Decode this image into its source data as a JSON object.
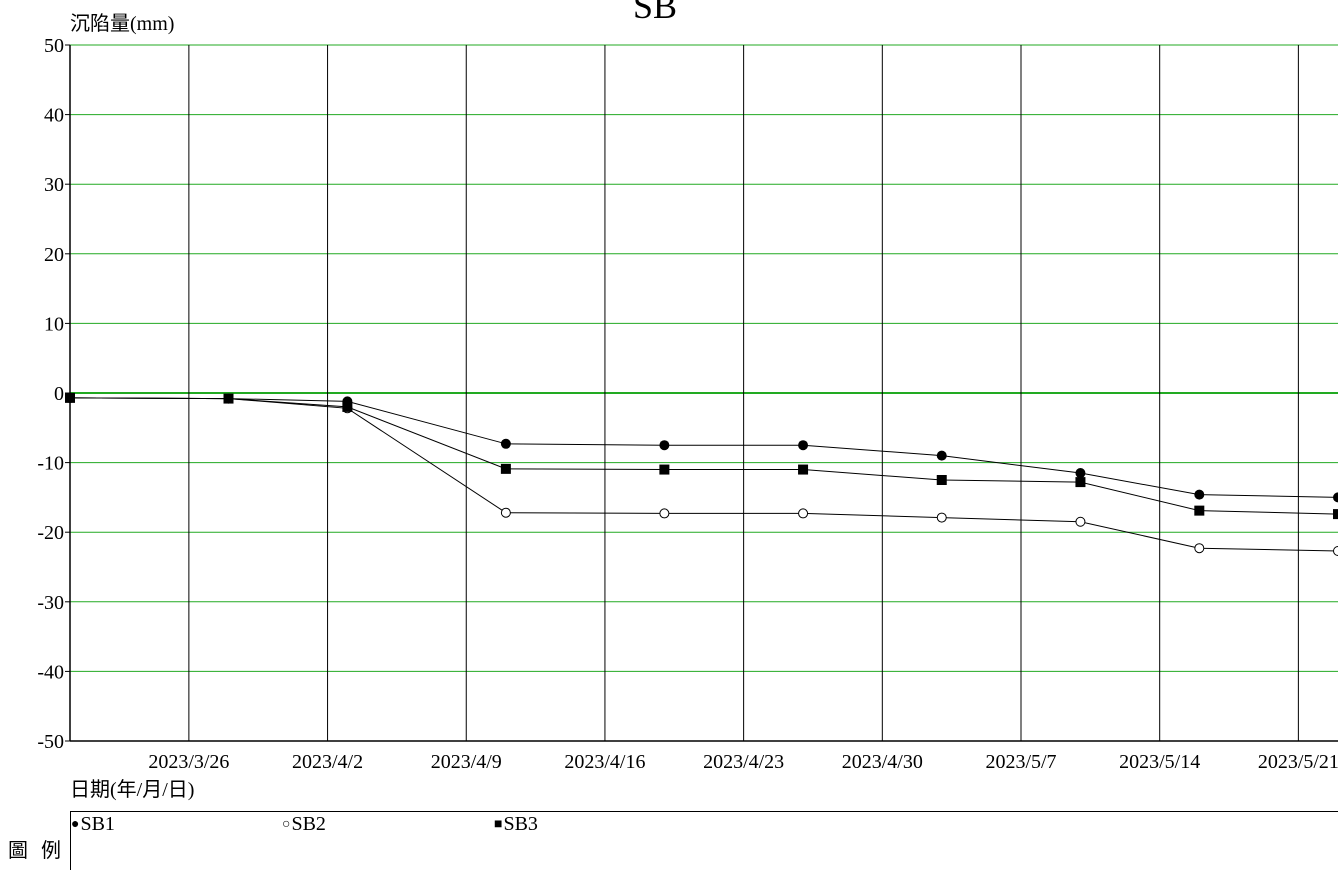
{
  "chart_data": {
    "type": "line",
    "title": "SB",
    "ylabel": "沉陷量(mm)",
    "xlabel": "日期(年/月/日)",
    "ylim": [
      -50,
      50
    ],
    "yticks": [
      50,
      40,
      30,
      20,
      10,
      0,
      -10,
      -20,
      -30,
      -40,
      -50
    ],
    "xlim": [
      "2023/3/20",
      "2023/5/23"
    ],
    "xticks": [
      "2023/3/26",
      "2023/4/2",
      "2023/4/9",
      "2023/4/16",
      "2023/4/23",
      "2023/4/30",
      "2023/5/7",
      "2023/5/14",
      "2023/5/21"
    ],
    "grid": true,
    "grid_colors": {
      "horizontal": "#22aa22",
      "vertical": "#000000"
    },
    "legend_placement": "bottom",
    "legend_title": "圖 例",
    "series": [
      {
        "name": "SB1",
        "marker": "filled-circle",
        "x": [
          "2023/3/20",
          "2023/3/28",
          "2023/4/3",
          "2023/4/11",
          "2023/4/19",
          "2023/4/26",
          "2023/5/3",
          "2023/5/10",
          "2023/5/16",
          "2023/5/23"
        ],
        "y": [
          -0.7,
          -0.8,
          -1.2,
          -7.3,
          -7.5,
          -7.5,
          -9.0,
          -11.5,
          -14.6,
          -15.0
        ]
      },
      {
        "name": "SB2",
        "marker": "open-circle",
        "x": [
          "2023/3/20",
          "2023/3/28",
          "2023/4/3",
          "2023/4/11",
          "2023/4/19",
          "2023/4/26",
          "2023/5/3",
          "2023/5/10",
          "2023/5/16",
          "2023/5/23"
        ],
        "y": [
          -0.7,
          -0.8,
          -2.2,
          -17.2,
          -17.3,
          -17.3,
          -17.9,
          -18.5,
          -22.3,
          -22.7
        ]
      },
      {
        "name": "SB3",
        "marker": "filled-square",
        "x": [
          "2023/3/20",
          "2023/3/28",
          "2023/4/3",
          "2023/4/11",
          "2023/4/19",
          "2023/4/26",
          "2023/5/3",
          "2023/5/10",
          "2023/5/16",
          "2023/5/23"
        ],
        "y": [
          -0.7,
          -0.8,
          -2.0,
          -10.9,
          -11.0,
          -11.0,
          -12.5,
          -12.8,
          -16.9,
          -17.4
        ]
      }
    ]
  }
}
